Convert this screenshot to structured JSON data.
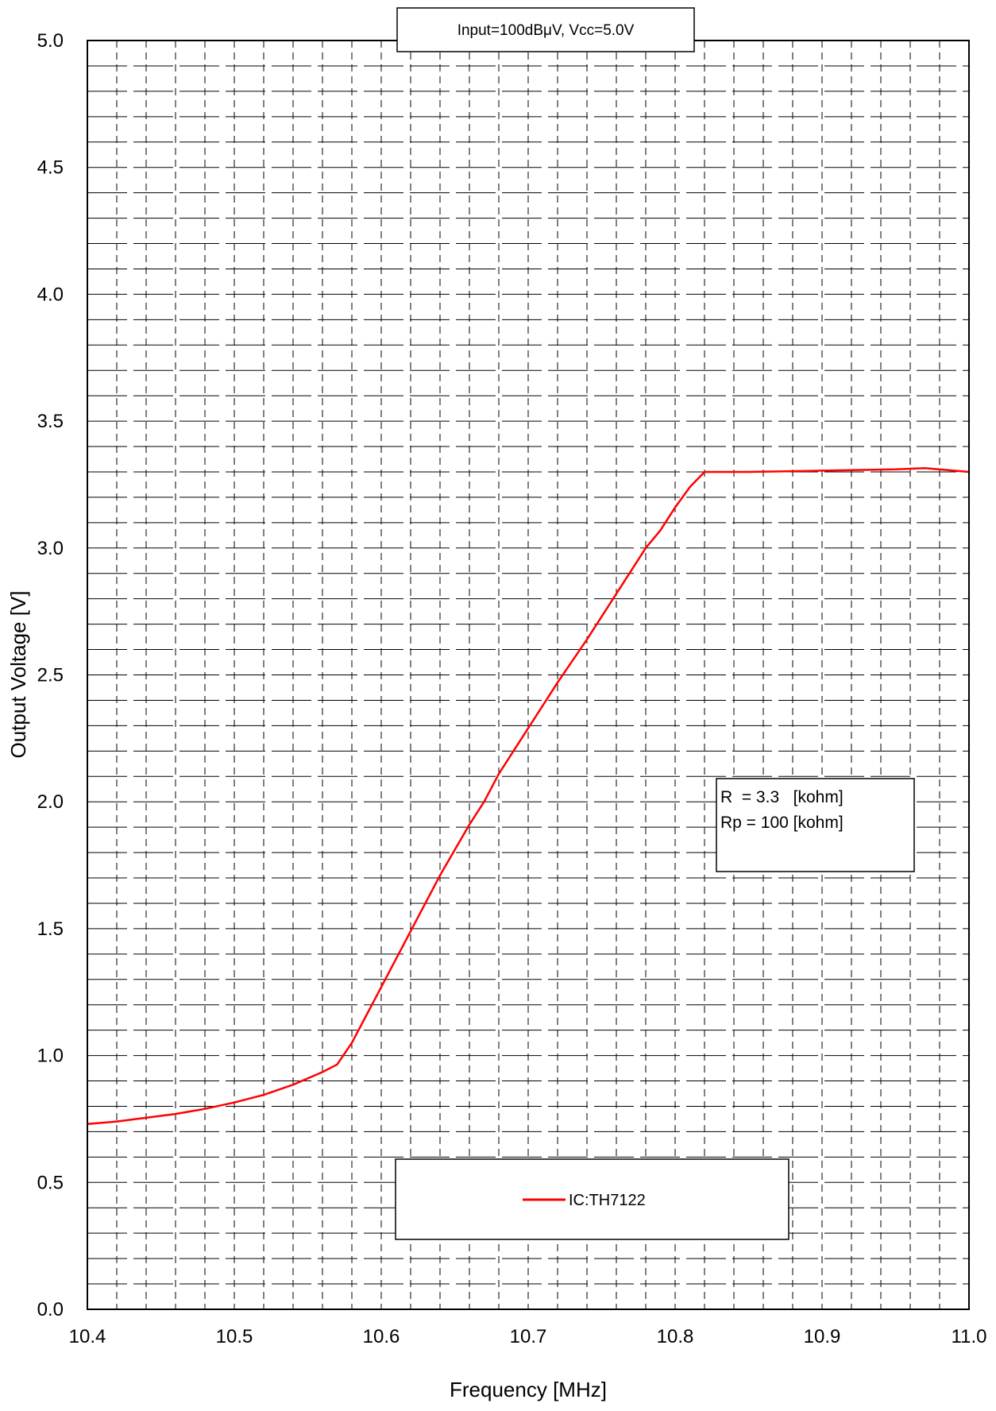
{
  "chart_data": {
    "type": "line",
    "title": "Input=100dBμV, Vcc=5.0V",
    "xlabel": "Frequency [MHz]",
    "ylabel": "Output Voltage [V]",
    "xlim": [
      10.4,
      11.0
    ],
    "ylim": [
      0.0,
      5.0
    ],
    "x_ticks": [
      "10.4",
      "10.5",
      "10.6",
      "10.7",
      "10.8",
      "10.9",
      "11.0"
    ],
    "y_ticks": [
      "0.0",
      "0.5",
      "1.0",
      "1.5",
      "2.0",
      "2.5",
      "3.0",
      "3.5",
      "4.0",
      "4.5",
      "5.0"
    ],
    "grid": true,
    "legend_position": "bottom-center",
    "annotation_lines": [
      "R  = 3.3   [kohm]",
      "Rp = 100 [kohm]"
    ],
    "series": [
      {
        "name": "IC:TH7122",
        "color": "#ff0000",
        "x": [
          10.4,
          10.42,
          10.44,
          10.46,
          10.48,
          10.5,
          10.52,
          10.54,
          10.56,
          10.57,
          10.58,
          10.59,
          10.6,
          10.61,
          10.62,
          10.64,
          10.66,
          10.67,
          10.68,
          10.7,
          10.72,
          10.74,
          10.76,
          10.78,
          10.79,
          10.8,
          10.81,
          10.82,
          10.85,
          10.9,
          10.95,
          10.97,
          11.0
        ],
        "y": [
          0.73,
          0.74,
          0.755,
          0.77,
          0.79,
          0.815,
          0.845,
          0.885,
          0.935,
          0.965,
          1.05,
          1.16,
          1.27,
          1.38,
          1.49,
          1.71,
          1.91,
          2.0,
          2.11,
          2.29,
          2.47,
          2.64,
          2.82,
          3.0,
          3.07,
          3.16,
          3.24,
          3.3,
          3.3,
          3.305,
          3.31,
          3.315,
          3.3
        ]
      }
    ]
  }
}
